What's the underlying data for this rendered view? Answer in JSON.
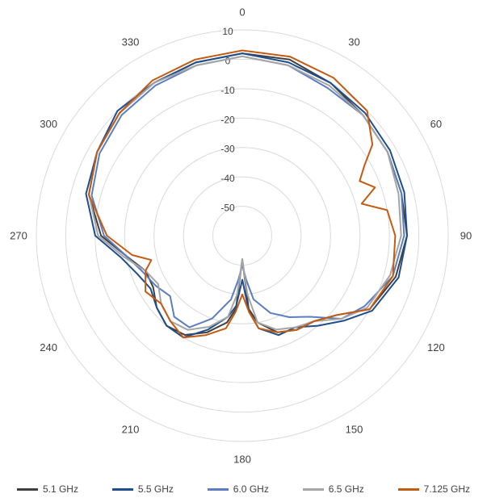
{
  "chart_data": {
    "type": "polar-line",
    "title": "",
    "angular_axis": {
      "direction": "clockwise",
      "zero_at": "top",
      "tick_labels": [
        "0",
        "30",
        "60",
        "90",
        "120",
        "150",
        "180",
        "210",
        "240",
        "270",
        "300",
        "330"
      ],
      "tick_values_deg": [
        0,
        30,
        60,
        90,
        120,
        150,
        180,
        210,
        240,
        270,
        300,
        330
      ]
    },
    "radial_axis": {
      "range": [
        -60,
        10
      ],
      "tick_labels": [
        "10",
        "0",
        "-10",
        "-20",
        "-30",
        "-40",
        "-50"
      ],
      "tick_values": [
        10,
        0,
        -10,
        -20,
        -30,
        -40,
        -50
      ],
      "grid_rings": [
        -60,
        -50,
        -40,
        -30,
        -20,
        -10,
        0,
        10
      ],
      "grid": true
    },
    "legend": {
      "position": "bottom"
    },
    "series": [
      {
        "name": "5.1 GHz",
        "color": "#404040",
        "angles": [
          0,
          15,
          30,
          45,
          60,
          75,
          90,
          105,
          120,
          130,
          140,
          150,
          160,
          170,
          175,
          180,
          185,
          190,
          200,
          210,
          220,
          230,
          240,
          250,
          260,
          270,
          285,
          300,
          315,
          330,
          345
        ],
        "values": [
          2,
          2,
          0,
          -2,
          -3,
          -4,
          -4,
          -6,
          -10,
          -18,
          -22,
          -23,
          -25,
          -30,
          -35,
          -52,
          -35,
          -30,
          -25,
          -21,
          -20,
          -22,
          -25,
          -25,
          -20,
          -12,
          -6,
          -3,
          -1,
          0,
          1
        ]
      },
      {
        "name": "5.5 GHz",
        "color": "#1f4e8c",
        "angles": [
          0,
          15,
          30,
          45,
          60,
          75,
          90,
          105,
          120,
          130,
          140,
          150,
          160,
          170,
          175,
          180,
          185,
          190,
          200,
          210,
          220,
          230,
          240,
          250,
          260,
          270,
          285,
          300,
          315,
          330,
          345
        ],
        "values": [
          2,
          1,
          0,
          -1,
          -2,
          -3,
          -4,
          -5,
          -9,
          -15,
          -20,
          -24,
          -24,
          -28,
          -34,
          -45,
          -36,
          -32,
          -26,
          -20,
          -20,
          -22,
          -24,
          -22,
          -18,
          -10,
          -5,
          -3,
          0,
          0,
          1
        ]
      },
      {
        "name": "6.0 GHz",
        "color": "#5b7ec2",
        "angles": [
          0,
          15,
          30,
          45,
          60,
          75,
          90,
          105,
          120,
          130,
          140,
          150,
          160,
          170,
          175,
          180,
          185,
          190,
          200,
          210,
          220,
          230,
          240,
          250,
          260,
          270,
          285,
          300,
          315,
          330,
          345
        ],
        "values": [
          1,
          0,
          -2,
          -2,
          -3,
          -4,
          -5,
          -7,
          -12,
          -16,
          -24,
          -28,
          -32,
          -38,
          -45,
          -50,
          -45,
          -38,
          -30,
          -24,
          -24,
          -28,
          -26,
          -24,
          -20,
          -13,
          -7,
          -4,
          -2,
          -1,
          0
        ]
      },
      {
        "name": "6.5 GHz",
        "color": "#a5a5a5",
        "angles": [
          0,
          15,
          30,
          45,
          60,
          75,
          90,
          105,
          120,
          130,
          140,
          150,
          160,
          170,
          175,
          180,
          185,
          190,
          200,
          210,
          220,
          230,
          240,
          250,
          260,
          270,
          285,
          300,
          315,
          330,
          345
        ],
        "values": [
          1,
          0,
          -1,
          -2,
          -3,
          -5,
          -6,
          -8,
          -11,
          -16,
          -22,
          -24,
          -26,
          -30,
          -40,
          -52,
          -40,
          -32,
          -27,
          -23,
          -22,
          -24,
          -27,
          -25,
          -19,
          -11,
          -6,
          -3,
          -1,
          0,
          0
        ]
      },
      {
        "name": "7.125 GHz",
        "color": "#c55a11",
        "angles": [
          0,
          15,
          30,
          45,
          55,
          60,
          65,
          70,
          75,
          80,
          90,
          105,
          120,
          130,
          140,
          150,
          160,
          170,
          175,
          180,
          185,
          190,
          200,
          210,
          220,
          230,
          240,
          250,
          255,
          260,
          270,
          285,
          300,
          315,
          330,
          345
        ],
        "values": [
          3,
          3,
          2,
          0,
          -6,
          -12,
          -16,
          -12,
          -18,
          -10,
          -8,
          -7,
          -10,
          -18,
          -22,
          -23,
          -25,
          -28,
          -34,
          -40,
          -34,
          -28,
          -24,
          -20,
          -22,
          -24,
          -22,
          -25,
          -28,
          -22,
          -14,
          -6,
          -3,
          -1,
          1,
          2
        ]
      }
    ]
  }
}
